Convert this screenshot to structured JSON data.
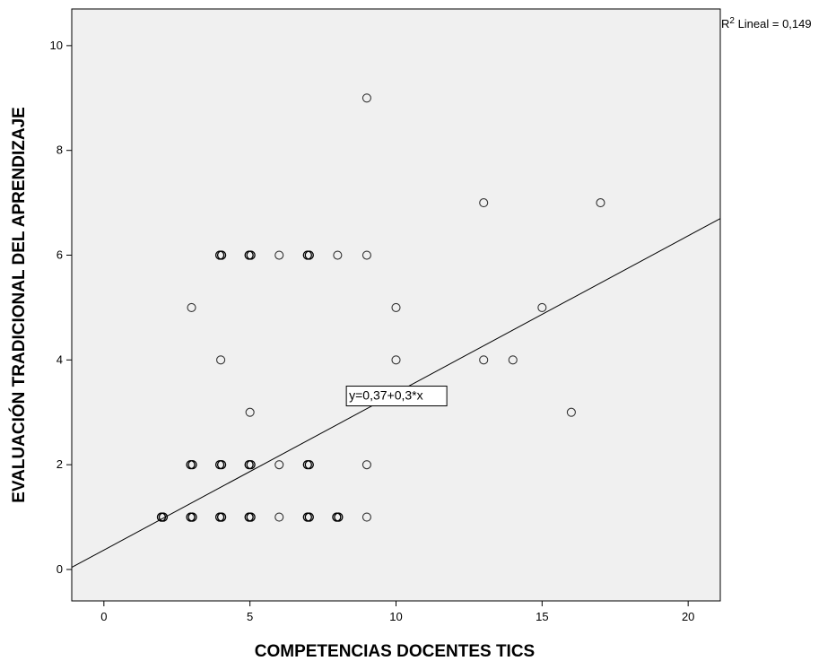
{
  "chart_data": {
    "type": "scatter",
    "xlabel": "COMPETENCIAS DOCENTES TICS",
    "ylabel": "EVALUACIÓN TRADICIONAL DEL APRENDIZAJE",
    "xlim": [
      -1.1,
      21.1
    ],
    "ylim": [
      -0.6,
      10.7
    ],
    "x_ticks": [
      0,
      5,
      10,
      15,
      20
    ],
    "y_ticks": [
      0,
      2,
      4,
      6,
      8,
      10
    ],
    "grid": false,
    "background": "#f0f0f0",
    "points": [
      {
        "x": 2,
        "y": 1,
        "overlap": true
      },
      {
        "x": 3,
        "y": 1,
        "overlap": true
      },
      {
        "x": 4,
        "y": 1,
        "overlap": true
      },
      {
        "x": 5,
        "y": 1,
        "overlap": true
      },
      {
        "x": 6,
        "y": 1,
        "overlap": false
      },
      {
        "x": 7,
        "y": 1,
        "overlap": true
      },
      {
        "x": 8,
        "y": 1,
        "overlap": true
      },
      {
        "x": 9,
        "y": 1,
        "overlap": false
      },
      {
        "x": 3,
        "y": 2,
        "overlap": true
      },
      {
        "x": 4,
        "y": 2,
        "overlap": true
      },
      {
        "x": 5,
        "y": 2,
        "overlap": true
      },
      {
        "x": 6,
        "y": 2,
        "overlap": false
      },
      {
        "x": 7,
        "y": 2,
        "overlap": true
      },
      {
        "x": 9,
        "y": 2,
        "overlap": false
      },
      {
        "x": 5,
        "y": 3,
        "overlap": false
      },
      {
        "x": 16,
        "y": 3,
        "overlap": false
      },
      {
        "x": 4,
        "y": 4,
        "overlap": false
      },
      {
        "x": 10,
        "y": 4,
        "overlap": false
      },
      {
        "x": 13,
        "y": 4,
        "overlap": false
      },
      {
        "x": 14,
        "y": 4,
        "overlap": false
      },
      {
        "x": 3,
        "y": 5,
        "overlap": false
      },
      {
        "x": 10,
        "y": 5,
        "overlap": false
      },
      {
        "x": 15,
        "y": 5,
        "overlap": false
      },
      {
        "x": 4,
        "y": 6,
        "overlap": true
      },
      {
        "x": 5,
        "y": 6,
        "overlap": true
      },
      {
        "x": 6,
        "y": 6,
        "overlap": false
      },
      {
        "x": 7,
        "y": 6,
        "overlap": true
      },
      {
        "x": 8,
        "y": 6,
        "overlap": false
      },
      {
        "x": 9,
        "y": 6,
        "overlap": false
      },
      {
        "x": 13,
        "y": 7,
        "overlap": false
      },
      {
        "x": 17,
        "y": 7,
        "overlap": false
      },
      {
        "x": 9,
        "y": 9,
        "overlap": false
      }
    ],
    "fit_line": {
      "intercept": 0.37,
      "slope": 0.3
    },
    "equation_label": "y=0,37+0,3*x",
    "r2_prefix": "R",
    "r2_sup": "2",
    "r2_suffix": " Lineal = 0,149"
  }
}
